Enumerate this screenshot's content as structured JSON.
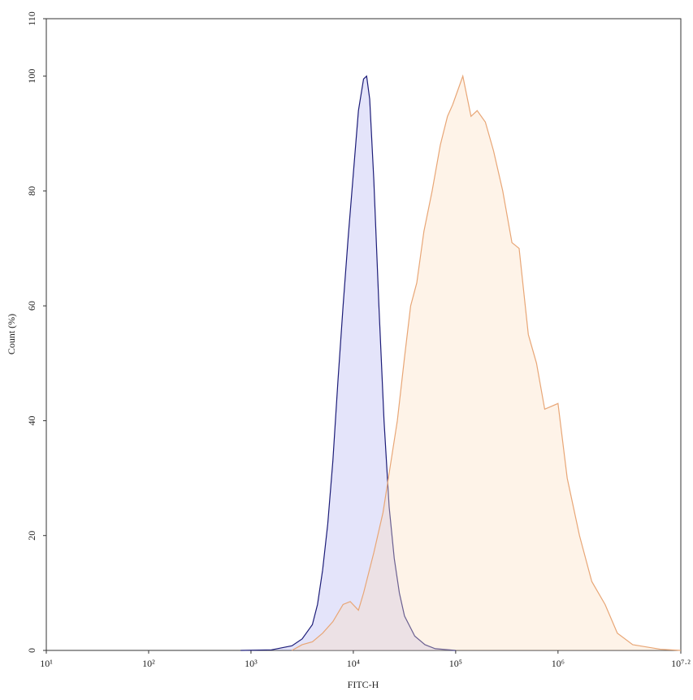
{
  "chart_data": {
    "type": "area",
    "xscale": "log",
    "xlabel": "FITC-H",
    "ylabel": "Count (%)",
    "xlim": [
      10,
      15848932
    ],
    "ylim": [
      0,
      110
    ],
    "xticks": [
      {
        "value": 10,
        "label": "10¹"
      },
      {
        "value": 100,
        "label": "10²"
      },
      {
        "value": 1000,
        "label": "10³"
      },
      {
        "value": 10000,
        "label": "10⁴"
      },
      {
        "value": 100000,
        "label": "10⁵"
      },
      {
        "value": 1000000,
        "label": "10⁶"
      },
      {
        "value": 15848932,
        "label": "10⁷·²"
      }
    ],
    "yticks": [
      0,
      20,
      40,
      60,
      80,
      100,
      110
    ],
    "series": [
      {
        "color": "#1c1c78",
        "fill": "rgba(170,170,240,0.32)",
        "x": [
          794,
          1585,
          2512,
          3162,
          3981,
          4467,
          5012,
          5623,
          6310,
          7079,
          7943,
          8913,
          10000,
          11220,
          12589,
          13490,
          14454,
          15849,
          17783,
          19953,
          22387,
          25119,
          28184,
          31623,
          39811,
          50119,
          63096,
          100000
        ],
        "values": [
          0,
          0.1,
          0.8,
          2,
          4.5,
          8,
          14,
          22,
          33,
          47,
          60,
          72,
          83,
          94,
          99.5,
          100,
          96,
          82,
          60,
          40,
          25,
          16,
          10,
          6,
          2.5,
          1,
          0.3,
          0
        ]
      },
      {
        "color": "#e8a676",
        "fill": "rgba(252,220,190,0.35)",
        "x": [
          2512,
          3162,
          3981,
          5012,
          6310,
          7943,
          9333,
          11220,
          12589,
          15849,
          19498,
          22909,
          26915,
          31623,
          36308,
          41687,
          48978,
          58884,
          70795,
          83176,
          93325,
          117490,
          141254,
          162181,
          194984,
          234423,
          288403,
          354813,
          416869,
          512861,
          616595,
          741310,
          1000000,
          1230269,
          1621810,
          2137962,
          2884032,
          3801894,
          5370318,
          10000000,
          15848932
        ],
        "values": [
          0,
          1,
          1.5,
          3,
          5,
          8,
          8.5,
          7,
          10,
          17,
          24,
          32,
          40,
          51,
          60,
          64,
          73,
          80,
          88,
          93,
          95,
          100,
          93,
          94,
          92,
          87,
          80,
          71,
          70,
          55,
          50,
          42,
          43,
          30,
          20,
          12,
          8,
          3,
          1,
          0.2,
          0
        ]
      }
    ]
  }
}
